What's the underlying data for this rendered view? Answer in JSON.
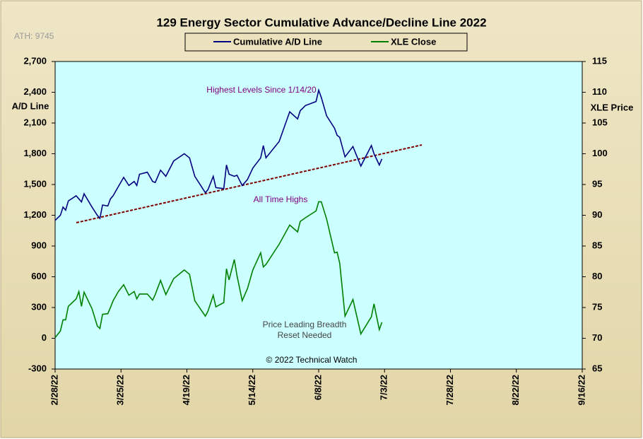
{
  "chart_data": {
    "type": "line",
    "title": "129 Energy Sector Cumulative Advance/Decline Line 2022",
    "subtitle": "ATH: 9745",
    "ylabel": "A/D Line",
    "y2label": "XLE Price",
    "annotations": [
      "Highest Levels  Since 1/14/20",
      "All Time Highs",
      "Price Leading Breadth",
      "Reset Needed",
      "© 2022 Technical Watch"
    ],
    "x": [
      "2/28/22",
      "3/2/22",
      "3/3/22",
      "3/4/22",
      "3/5/22",
      "3/8/22",
      "3/9/22",
      "3/10/22",
      "3/11/22",
      "3/14/22",
      "3/16/22",
      "3/17/22",
      "3/18/22",
      "3/20/22",
      "3/21/22",
      "3/22/22",
      "3/24/22",
      "3/26/22",
      "3/28/22",
      "3/30/22",
      "3/31/22",
      "4/1/22",
      "4/4/22",
      "4/6/22",
      "4/7/22",
      "4/9/22",
      "4/11/22",
      "4/14/22",
      "4/18/22",
      "4/20/22",
      "4/22/22",
      "4/26/22",
      "4/27/22",
      "4/29/22",
      "4/30/22",
      "5/3/22",
      "5/4/22",
      "5/5/22",
      "5/7/22",
      "5/8/22",
      "5/10/22",
      "5/12/22",
      "5/14/22",
      "5/17/22",
      "5/18/22",
      "5/19/22",
      "5/24/22",
      "5/28/22",
      "5/31/22",
      "6/1/22",
      "6/3/22",
      "6/7/22",
      "6/8/22",
      "6/9/22",
      "6/11/22",
      "6/14/22",
      "6/15/22",
      "6/16/22",
      "6/18/22",
      "6/21/22",
      "6/24/22",
      "6/28/22",
      "6/29/22",
      "7/1/22",
      "7/2/22"
    ],
    "series": [
      {
        "name": "Cumulative A/D Line",
        "color": "#000080",
        "axis": "y",
        "values": [
          1150,
          1200,
          1280,
          1250,
          1340,
          1390,
          1360,
          1330,
          1410,
          1280,
          1200,
          1170,
          1300,
          1290,
          1360,
          1390,
          1480,
          1570,
          1490,
          1530,
          1490,
          1600,
          1620,
          1530,
          1520,
          1640,
          1580,
          1730,
          1800,
          1760,
          1580,
          1420,
          1450,
          1580,
          1470,
          1460,
          1690,
          1600,
          1580,
          1590,
          1490,
          1550,
          1660,
          1760,
          1880,
          1760,
          1920,
          2210,
          2140,
          2220,
          2270,
          2310,
          2420,
          2350,
          2170,
          2050,
          1980,
          1960,
          1770,
          1870,
          1680,
          1880,
          1800,
          1690,
          1750
        ]
      },
      {
        "name": "XLE Close",
        "color": "#008000",
        "axis": "y2",
        "values": [
          70.1,
          71.2,
          73.0,
          73.0,
          75.2,
          76.4,
          77.6,
          75.2,
          77.5,
          74.8,
          72.0,
          71.6,
          73.9,
          74.0,
          75.0,
          76.1,
          77.6,
          78.7,
          77.0,
          77.6,
          76.4,
          77.2,
          77.2,
          76.2,
          77.1,
          79.4,
          77.1,
          79.7,
          81.1,
          80.4,
          76.1,
          73.6,
          74.4,
          77.0,
          75.1,
          75.8,
          81.3,
          79.5,
          82.8,
          80.2,
          76.1,
          78.1,
          81.1,
          83.9,
          81.6,
          82.0,
          85.3,
          88.4,
          87.3,
          89.0,
          89.6,
          90.7,
          92.2,
          92.2,
          89.4,
          83.9,
          84.0,
          82.2,
          73.6,
          76.3,
          70.7,
          73.5,
          75.6,
          71.4,
          72.6
        ]
      }
    ],
    "xlim": [
      "2/28/22",
      "9/16/22"
    ],
    "xticks": [
      "2/28/22",
      "3/25/22",
      "4/19/22",
      "5/14/22",
      "6/8/22",
      "7/3/22",
      "7/28/22",
      "8/22/22",
      "9/16/22"
    ],
    "ylim": [
      -300,
      2700
    ],
    "yticks": [
      -300,
      0,
      300,
      600,
      900,
      {
        "value": 1200,
        "label": "1,200"
      },
      {
        "value": 1500,
        "label": "1,500"
      },
      {
        "value": 1800,
        "label": "1,800"
      },
      {
        "value": 2100,
        "label": "2,100"
      },
      {
        "value": 2400,
        "label": "2,400"
      },
      {
        "value": 2700,
        "label": "2,700"
      }
    ],
    "y2lim": [
      65,
      115
    ],
    "y2ticks": [
      65,
      70,
      75,
      80,
      85,
      90,
      95,
      100,
      105,
      110,
      115
    ],
    "grid": false,
    "legend": "top"
  }
}
